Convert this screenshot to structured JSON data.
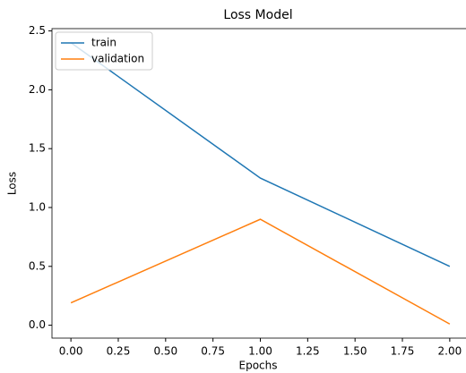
{
  "chart_data": {
    "type": "line",
    "title": "Loss Model",
    "xlabel": "Epochs",
    "ylabel": "Loss",
    "x": [
      0,
      1,
      2
    ],
    "series": [
      {
        "name": "train",
        "color": "#1f77b4",
        "values": [
          2.4,
          1.25,
          0.5
        ]
      },
      {
        "name": "validation",
        "color": "#ff7f0e",
        "values": [
          0.19,
          0.9,
          0.01
        ]
      }
    ],
    "xlim": [
      -0.1,
      2.1
    ],
    "xticks": [
      {
        "value": 0,
        "label": "0.00"
      },
      {
        "value": 0.25,
        "label": "0.25"
      },
      {
        "value": 0.5,
        "label": "0.50"
      },
      {
        "value": 0.75,
        "label": "0.75"
      },
      {
        "value": 1,
        "label": "1.00"
      },
      {
        "value": 1.25,
        "label": "1.25"
      },
      {
        "value": 1.5,
        "label": "1.50"
      },
      {
        "value": 1.75,
        "label": "1.75"
      },
      {
        "value": 2,
        "label": "2.00"
      }
    ],
    "ylim": [
      -0.1095,
      2.5195
    ],
    "yticks": [
      {
        "value": 0,
        "label": "0.0"
      },
      0.5,
      {
        "value": 1,
        "label": "1.0"
      },
      1.5,
      {
        "value": 2,
        "label": "2.0"
      },
      2.5
    ],
    "legend": "upper left"
  }
}
